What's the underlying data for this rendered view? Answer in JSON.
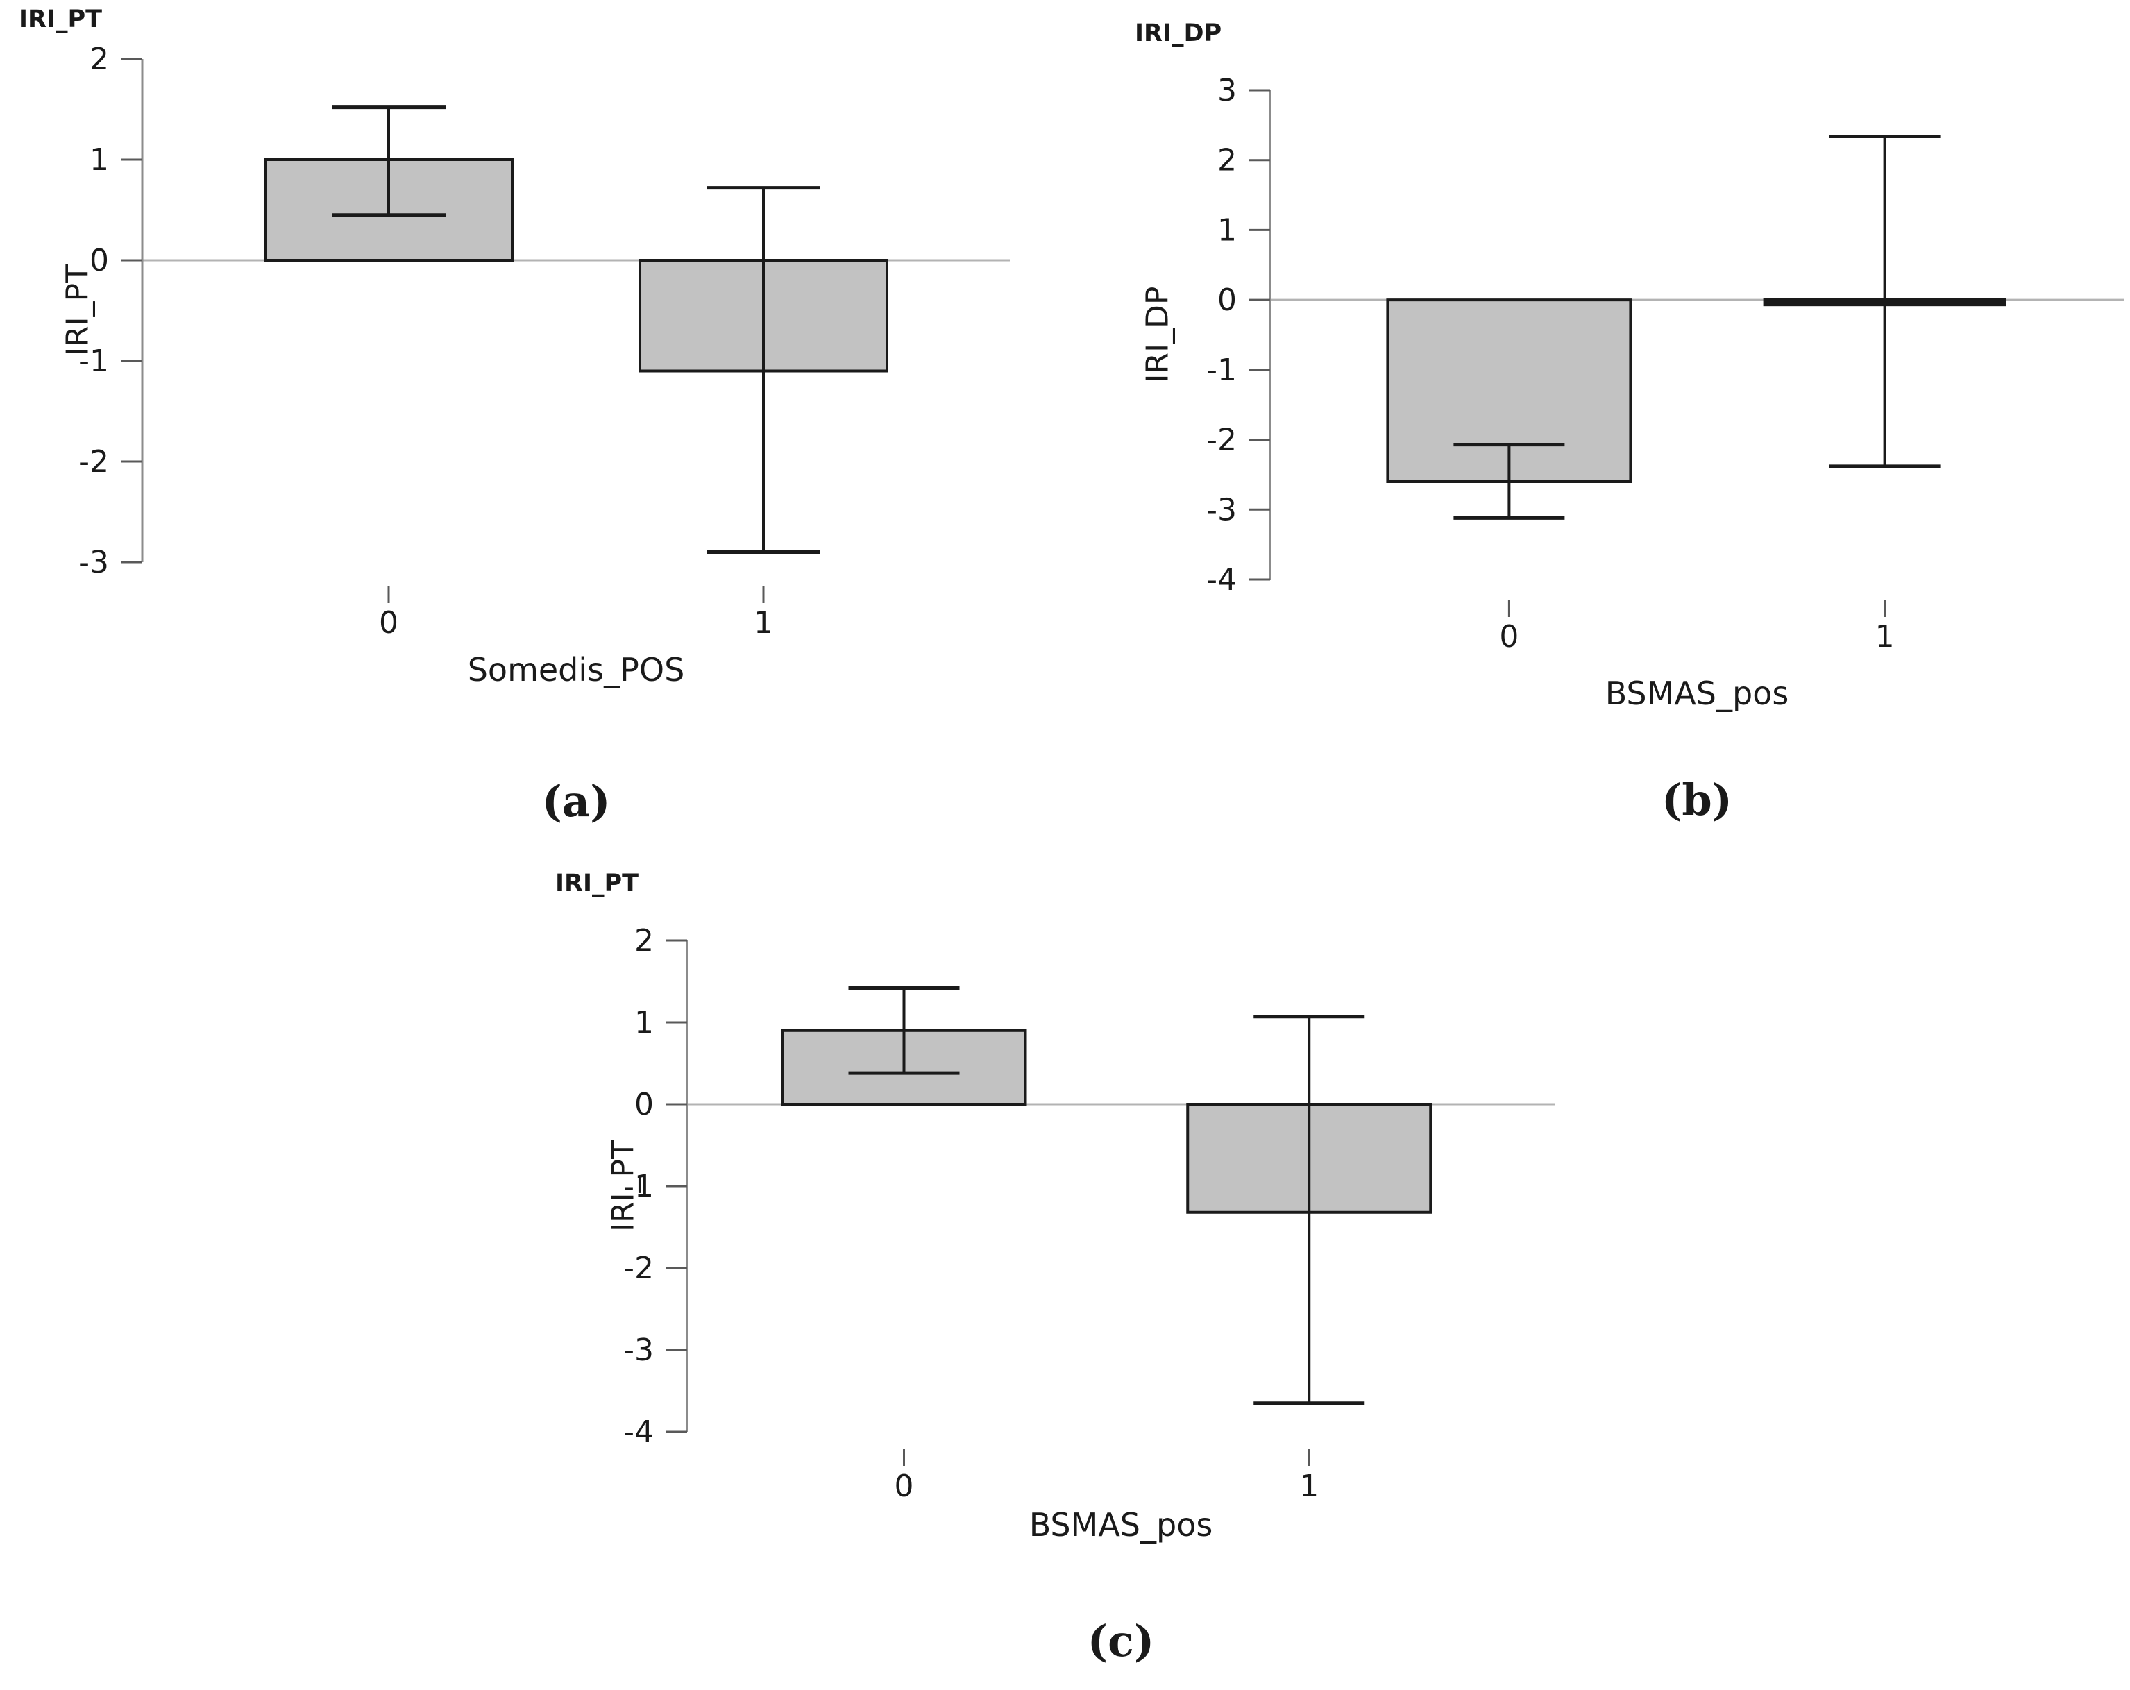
{
  "figure": {
    "background": "#ffffff",
    "colors": {
      "bar_fill": "#c2c2c2",
      "bar_border": "#1a1a1a",
      "error_bar": "#1a1a1a",
      "zero_line": "#b3b3b3",
      "axis_line": "#8c8c8c",
      "tick": "#595959",
      "text": "#1a1a1a"
    }
  },
  "chart_data": [
    {
      "id": "a",
      "type": "bar",
      "title": "IRI_PT",
      "ylabel": "IRI_PT",
      "xlabel": "Somedis_POS",
      "caption": "(a)",
      "categories": [
        "0",
        "1"
      ],
      "values": [
        1.0,
        -1.1
      ],
      "error_low": [
        0.45,
        -2.9
      ],
      "error_high": [
        1.52,
        0.72
      ],
      "ylim": [
        -3,
        2
      ],
      "yticks": [
        2,
        1,
        0,
        -1,
        -2,
        -3
      ],
      "grid": "off",
      "legend": "none"
    },
    {
      "id": "b",
      "type": "bar",
      "title": "IRI_DP",
      "ylabel": "IRI_DP",
      "xlabel": "BSMAS_pos",
      "caption": "(b)",
      "categories": [
        "0",
        "1"
      ],
      "values": [
        -2.6,
        -0.03
      ],
      "error_low": [
        -3.12,
        -2.38
      ],
      "error_high": [
        -2.07,
        2.34
      ],
      "ylim": [
        -4,
        3
      ],
      "yticks": [
        3,
        2,
        1,
        0,
        -1,
        -2,
        -3,
        -4
      ],
      "grid": "off",
      "legend": "none"
    },
    {
      "id": "c",
      "type": "bar",
      "title": "IRI_PT",
      "ylabel": "IRI_PT",
      "xlabel": "BSMAS_pos",
      "caption": "(c)",
      "categories": [
        "0",
        "1"
      ],
      "values": [
        0.9,
        -1.32
      ],
      "error_low": [
        0.38,
        -3.65
      ],
      "error_high": [
        1.42,
        1.07
      ],
      "ylim": [
        -4,
        2
      ],
      "yticks": [
        2,
        1,
        0,
        -1,
        -2,
        -3,
        -4
      ],
      "grid": "off",
      "legend": "none"
    }
  ]
}
